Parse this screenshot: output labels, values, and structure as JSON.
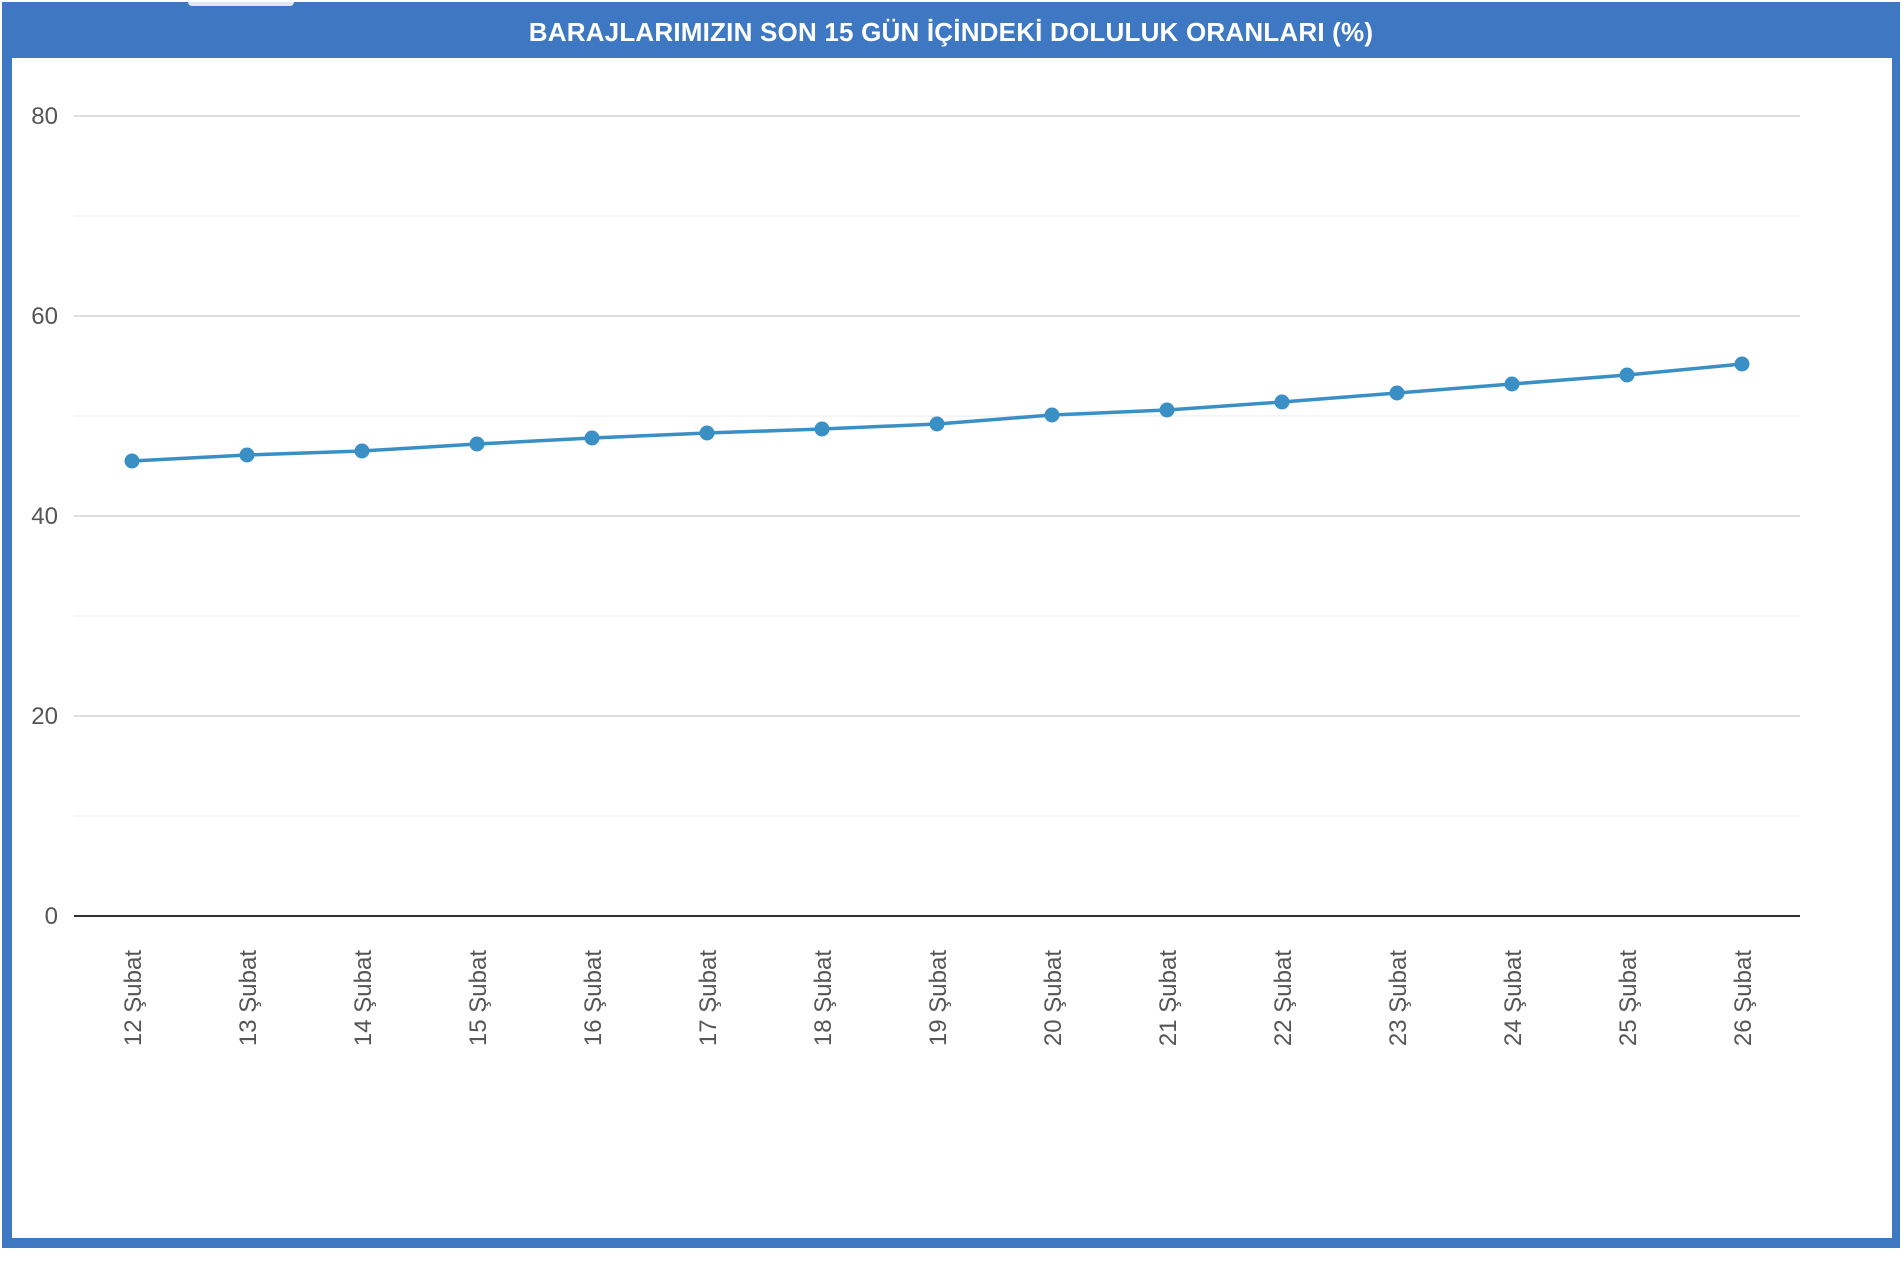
{
  "header": {
    "title": "BARAJLARIMIZIN SON 15 GÜN İÇİNDEKİ DOLULUK ORANLARI (%)"
  },
  "colors": {
    "frame": "#3e78c2",
    "series": "#3a8fc4",
    "major_grid": "#cccccc",
    "minor_grid": "#e8e8e8",
    "baseline": "#333333",
    "tick_text": "#555555"
  },
  "chart_data": {
    "type": "line",
    "title": "BARAJLARIMIZIN SON 15 GÜN İÇİNDEKİ DOLULUK ORANLARI (%)",
    "xlabel": "",
    "ylabel": "",
    "ylim": [
      0,
      80
    ],
    "y_ticks": [
      0,
      20,
      40,
      60,
      80
    ],
    "y_minor_step": 10,
    "grid": true,
    "legend": "none",
    "categories": [
      "12 Şubat",
      "13 Şubat",
      "14 Şubat",
      "15 Şubat",
      "16 Şubat",
      "17 Şubat",
      "18 Şubat",
      "19 Şubat",
      "20 Şubat",
      "21 Şubat",
      "22 Şubat",
      "23 Şubat",
      "24 Şubat",
      "25 Şubat",
      "26 Şubat"
    ],
    "series": [
      {
        "values": [
          45.5,
          46.1,
          46.5,
          47.2,
          47.8,
          48.3,
          48.7,
          49.2,
          50.1,
          50.6,
          51.4,
          52.3,
          53.2,
          54.1,
          55.2
        ]
      }
    ]
  }
}
